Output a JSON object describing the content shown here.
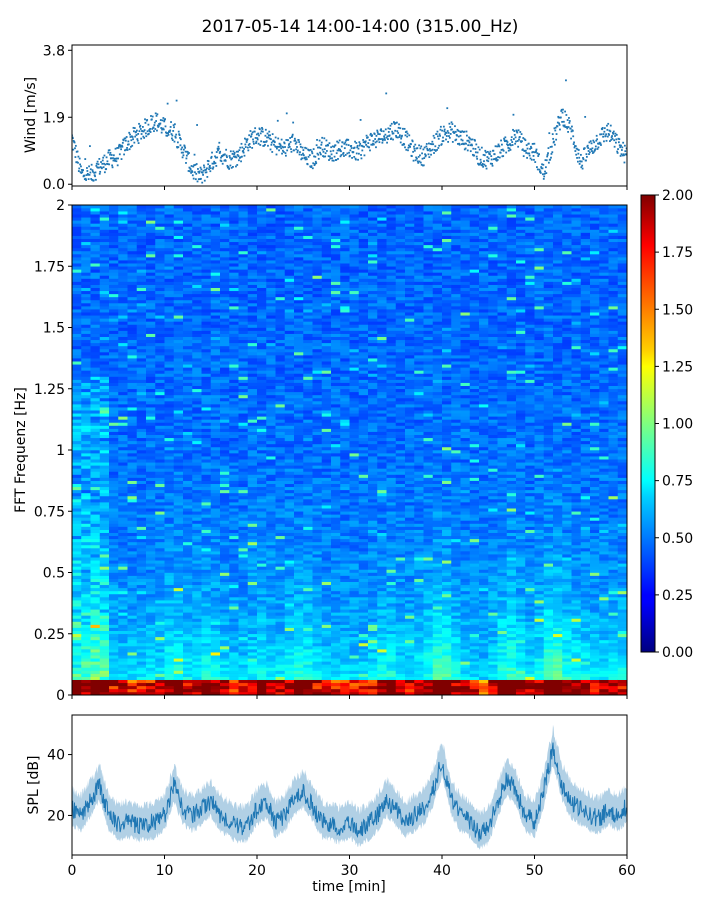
{
  "title": "2017-05-14 14:00-14:00 (315.00_Hz)",
  "colors": {
    "series": "#1f77b4"
  },
  "chart_data": [
    {
      "type": "scatter",
      "name": "wind",
      "ylabel": "Wind [m/s]",
      "xlim": [
        0,
        60
      ],
      "ylim": [
        -0.05,
        3.95
      ],
      "yticks": [
        "0.0",
        "1.9",
        "3.8"
      ],
      "profile": {
        "x": [
          0,
          1,
          2,
          3,
          4,
          5,
          6,
          7,
          8,
          9,
          10,
          11,
          12,
          13,
          14,
          15,
          16,
          17,
          18,
          19,
          20,
          21,
          22,
          23,
          24,
          25,
          26,
          27,
          28,
          29,
          30,
          31,
          32,
          33,
          34,
          35,
          36,
          37,
          38,
          39,
          40,
          41,
          42,
          43,
          44,
          45,
          46,
          47,
          48,
          49,
          50,
          51,
          52,
          53,
          54,
          55,
          56,
          57,
          58,
          59,
          60
        ],
        "y": [
          1.3,
          0.3,
          0.25,
          0.5,
          0.7,
          0.8,
          1.2,
          1.4,
          1.6,
          1.8,
          1.6,
          1.5,
          1.0,
          0.4,
          0.2,
          0.6,
          0.9,
          0.7,
          0.8,
          1.2,
          1.4,
          1.3,
          1.1,
          1.0,
          1.2,
          0.8,
          0.7,
          1.1,
          0.9,
          1.0,
          1.0,
          0.9,
          1.2,
          1.3,
          1.4,
          1.6,
          1.3,
          0.9,
          0.8,
          1.1,
          1.4,
          1.5,
          1.3,
          1.2,
          0.8,
          0.7,
          0.9,
          1.1,
          1.4,
          1.0,
          0.9,
          0.3,
          1.2,
          2.0,
          1.5,
          0.6,
          1.0,
          1.3,
          1.5,
          1.1,
          0.8
        ]
      }
    },
    {
      "type": "heatmap",
      "name": "spectrogram",
      "ylabel": "FFT Frequenz [Hz]",
      "xlim": [
        0,
        60
      ],
      "ylim": [
        0,
        2
      ],
      "yticks": [
        "0",
        "0.25",
        "0.5",
        "0.75",
        "1",
        "1.25",
        "1.5",
        "1.75",
        "2"
      ],
      "colorbar": {
        "min": 0.0,
        "max": 2.0,
        "ticks": [
          "0.00",
          "0.25",
          "0.50",
          "0.75",
          "1.00",
          "1.25",
          "1.50",
          "1.75",
          "2.00"
        ],
        "colormap": "jet"
      }
    },
    {
      "type": "line",
      "name": "spl",
      "ylabel": "SPL [dB]",
      "xlabel": "time [min]",
      "xlim": [
        0,
        60
      ],
      "ylim": [
        7,
        53
      ],
      "yticks": [
        "20",
        "40"
      ],
      "xticks": [
        "0",
        "10",
        "20",
        "30",
        "40",
        "50",
        "60"
      ],
      "profile": {
        "x": [
          0,
          1,
          2,
          3,
          4,
          5,
          6,
          7,
          8,
          9,
          10,
          11,
          12,
          13,
          14,
          15,
          16,
          17,
          18,
          19,
          20,
          21,
          22,
          23,
          24,
          25,
          26,
          27,
          28,
          29,
          30,
          31,
          32,
          33,
          34,
          35,
          36,
          37,
          38,
          39,
          40,
          41,
          42,
          43,
          44,
          45,
          46,
          47,
          48,
          49,
          50,
          51,
          52,
          53,
          54,
          55,
          56,
          57,
          58,
          59,
          60
        ],
        "y": [
          22,
          20,
          25,
          30,
          20,
          17,
          18,
          17,
          17,
          18,
          20,
          30,
          22,
          20,
          22,
          25,
          20,
          18,
          16,
          17,
          22,
          24,
          18,
          20,
          25,
          28,
          23,
          18,
          17,
          16,
          18,
          15,
          17,
          20,
          25,
          22,
          18,
          20,
          22,
          28,
          38,
          25,
          20,
          18,
          14,
          16,
          24,
          32,
          28,
          20,
          18,
          28,
          42,
          30,
          24,
          22,
          20,
          19,
          22,
          20,
          23
        ]
      }
    }
  ]
}
